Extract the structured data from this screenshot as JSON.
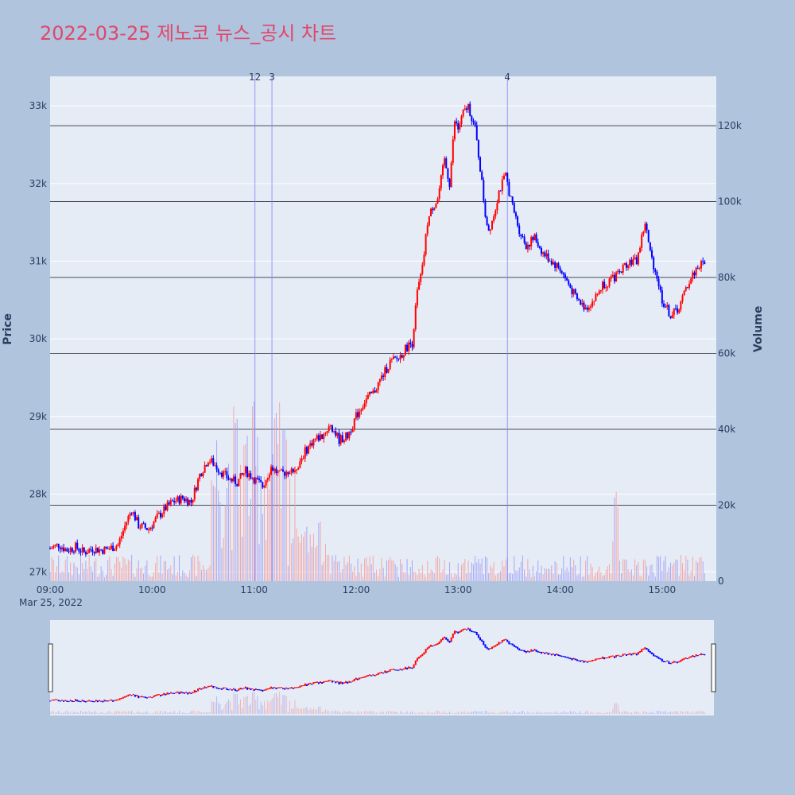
{
  "title": "2022-03-25 제노코 뉴스_공시 차트",
  "colors": {
    "background": "#b0c4de",
    "plot_bg": "#e5ecf6",
    "up": "#ff0000",
    "down": "#0000ff",
    "volume_up": "#f4a0a0",
    "volume_down": "#a0a0f4",
    "hline": "#4a4a5a",
    "title": "#e0476a"
  },
  "chart_data": {
    "type": "candlestick",
    "ylabel": "Price",
    "y2label": "Volume",
    "price_ticks": [
      "27k",
      "28k",
      "29k",
      "30k",
      "31k",
      "32k",
      "33k"
    ],
    "price_tick_values": [
      27000,
      28000,
      29000,
      30000,
      31000,
      32000,
      33000
    ],
    "price_range": [
      26880,
      33380
    ],
    "volume_ticks": [
      "0",
      "20k",
      "40k",
      "60k",
      "80k",
      "100k",
      "120k"
    ],
    "volume_tick_values": [
      0,
      20000,
      40000,
      60000,
      80000,
      100000,
      120000
    ],
    "volume_range": [
      0,
      133000
    ],
    "x_ticks": [
      "09:00",
      "10:00",
      "11:00",
      "12:00",
      "13:00",
      "14:00",
      "15:00"
    ],
    "x_tick_minutes": [
      0,
      60,
      120,
      180,
      240,
      300,
      360
    ],
    "x_date_label": "Mar 25, 2022",
    "x_range_minutes": [
      0,
      390
    ],
    "price_path": [
      [
        0,
        27300
      ],
      [
        5,
        27350
      ],
      [
        10,
        27280
      ],
      [
        15,
        27320
      ],
      [
        20,
        27250
      ],
      [
        25,
        27300
      ],
      [
        30,
        27280
      ],
      [
        35,
        27300
      ],
      [
        40,
        27350
      ],
      [
        45,
        27650
      ],
      [
        48,
        27800
      ],
      [
        52,
        27600
      ],
      [
        58,
        27550
      ],
      [
        63,
        27700
      ],
      [
        68,
        27820
      ],
      [
        72,
        27900
      ],
      [
        78,
        27950
      ],
      [
        83,
        27900
      ],
      [
        88,
        28250
      ],
      [
        93,
        28450
      ],
      [
        96,
        28400
      ],
      [
        100,
        28300
      ],
      [
        105,
        28200
      ],
      [
        110,
        28150
      ],
      [
        115,
        28300
      ],
      [
        120,
        28200
      ],
      [
        125,
        28100
      ],
      [
        130,
        28350
      ],
      [
        135,
        28250
      ],
      [
        140,
        28300
      ],
      [
        145,
        28350
      ],
      [
        150,
        28550
      ],
      [
        155,
        28700
      ],
      [
        160,
        28750
      ],
      [
        165,
        28900
      ],
      [
        170,
        28700
      ],
      [
        175,
        28750
      ],
      [
        180,
        29000
      ],
      [
        185,
        29200
      ],
      [
        190,
        29300
      ],
      [
        195,
        29500
      ],
      [
        200,
        29700
      ],
      [
        205,
        29750
      ],
      [
        210,
        29900
      ],
      [
        213,
        29950
      ],
      [
        216,
        30600
      ],
      [
        219,
        30900
      ],
      [
        222,
        31500
      ],
      [
        225,
        31700
      ],
      [
        228,
        31800
      ],
      [
        232,
        32300
      ],
      [
        235,
        32000
      ],
      [
        238,
        32800
      ],
      [
        240,
        32700
      ],
      [
        243,
        32900
      ],
      [
        246,
        33000
      ],
      [
        250,
        32700
      ],
      [
        253,
        32200
      ],
      [
        256,
        31600
      ],
      [
        258,
        31400
      ],
      [
        261,
        31600
      ],
      [
        264,
        31900
      ],
      [
        268,
        32100
      ],
      [
        272,
        31700
      ],
      [
        276,
        31400
      ],
      [
        280,
        31200
      ],
      [
        285,
        31300
      ],
      [
        290,
        31100
      ],
      [
        295,
        31000
      ],
      [
        300,
        30900
      ],
      [
        305,
        30700
      ],
      [
        310,
        30500
      ],
      [
        315,
        30400
      ],
      [
        320,
        30500
      ],
      [
        325,
        30700
      ],
      [
        330,
        30750
      ],
      [
        335,
        30850
      ],
      [
        340,
        31000
      ],
      [
        345,
        31000
      ],
      [
        350,
        31500
      ],
      [
        353,
        31100
      ],
      [
        357,
        30800
      ],
      [
        360,
        30500
      ],
      [
        365,
        30300
      ],
      [
        370,
        30400
      ],
      [
        375,
        30700
      ],
      [
        380,
        30900
      ],
      [
        385,
        31000
      ]
    ],
    "news_markers": [
      {
        "label": "12",
        "minute": 120.5
      },
      {
        "label": "3",
        "minute": 130.5
      },
      {
        "label": "4",
        "minute": 269
      }
    ]
  }
}
